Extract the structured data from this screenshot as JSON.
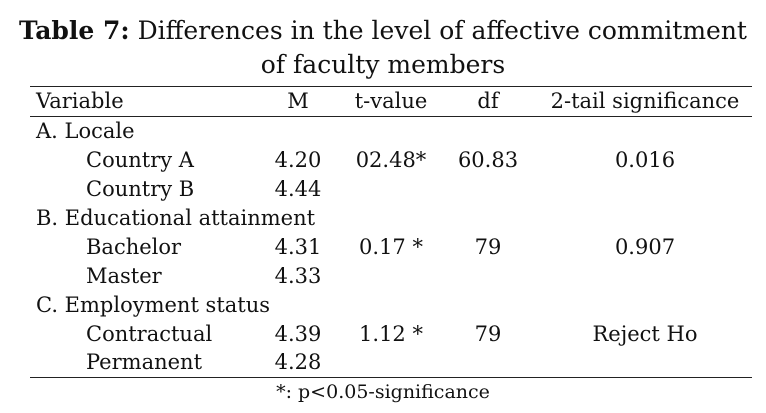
{
  "title": {
    "label": "Table 7:",
    "line1": "Differences in the level of affective commitment",
    "line2": "of faculty members"
  },
  "headers": {
    "variable": "Variable",
    "m": "M",
    "t_value": "t-value",
    "df": "df",
    "sig": "2-tail significance"
  },
  "groups": [
    {
      "label": "A. Locale",
      "rows": [
        {
          "name": "Country A",
          "m": "4.20",
          "t": "02.48*",
          "df": "60.83",
          "sig": "0.016"
        },
        {
          "name": "Country B",
          "m": "4.44",
          "t": "",
          "df": "",
          "sig": ""
        }
      ]
    },
    {
      "label": "B. Educational attainment",
      "rows": [
        {
          "name": "Bachelor",
          "m": "4.31",
          "t": "0.17 *",
          "df": "79",
          "sig": "0.907"
        },
        {
          "name": "Master",
          "m": "4.33",
          "t": "",
          "df": "",
          "sig": ""
        }
      ]
    },
    {
      "label": "C. Employment status",
      "rows": [
        {
          "name": "Contractual",
          "m": "4.39",
          "t": "1.12 *",
          "df": "79",
          "sig": "Reject Ho"
        },
        {
          "name": "Permanent",
          "m": "4.28",
          "t": "",
          "df": "",
          "sig": ""
        }
      ]
    }
  ],
  "footnote": "*: p<0.05-significance"
}
